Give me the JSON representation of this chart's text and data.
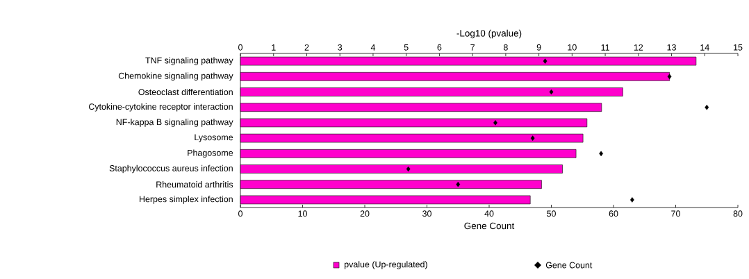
{
  "chart_data": {
    "type": "bar",
    "orientation": "horizontal",
    "categories": [
      "TNF signaling pathway",
      "Chemokine signaling pathway",
      "Osteoclast differentiation",
      "Cytokine-cytokine receptor interaction",
      "NF-kappa B signaling pathway",
      "Lysosome",
      "Phagosome",
      "Staphylococcus aureus infection",
      "Rheumatoid arthritis",
      "Herpes simplex infection"
    ],
    "series": [
      {
        "name": "pvalue (Up-regulated)",
        "axis": "x2",
        "color": "#ff00cc",
        "values": [
          13.74,
          12.94,
          11.53,
          10.89,
          10.45,
          10.33,
          10.12,
          9.71,
          9.08,
          8.74
        ]
      },
      {
        "name": "Gene Count",
        "type": "scatter",
        "marker": "diamond",
        "color": "#000000",
        "values": [
          49,
          69,
          50,
          75,
          41,
          47,
          58,
          27,
          35,
          63
        ]
      }
    ],
    "xlabel": "Gene Count",
    "x2label": "-Log10 (pvalue)",
    "xlim": [
      0,
      80
    ],
    "xticks": [
      0,
      10,
      20,
      30,
      40,
      50,
      60,
      70,
      80
    ],
    "x2lim": [
      0,
      15
    ],
    "x2ticks": [
      0,
      1,
      2,
      3,
      4,
      5,
      6,
      7,
      8,
      9,
      10,
      11,
      12,
      13,
      14,
      15
    ],
    "legend": "bottom"
  }
}
